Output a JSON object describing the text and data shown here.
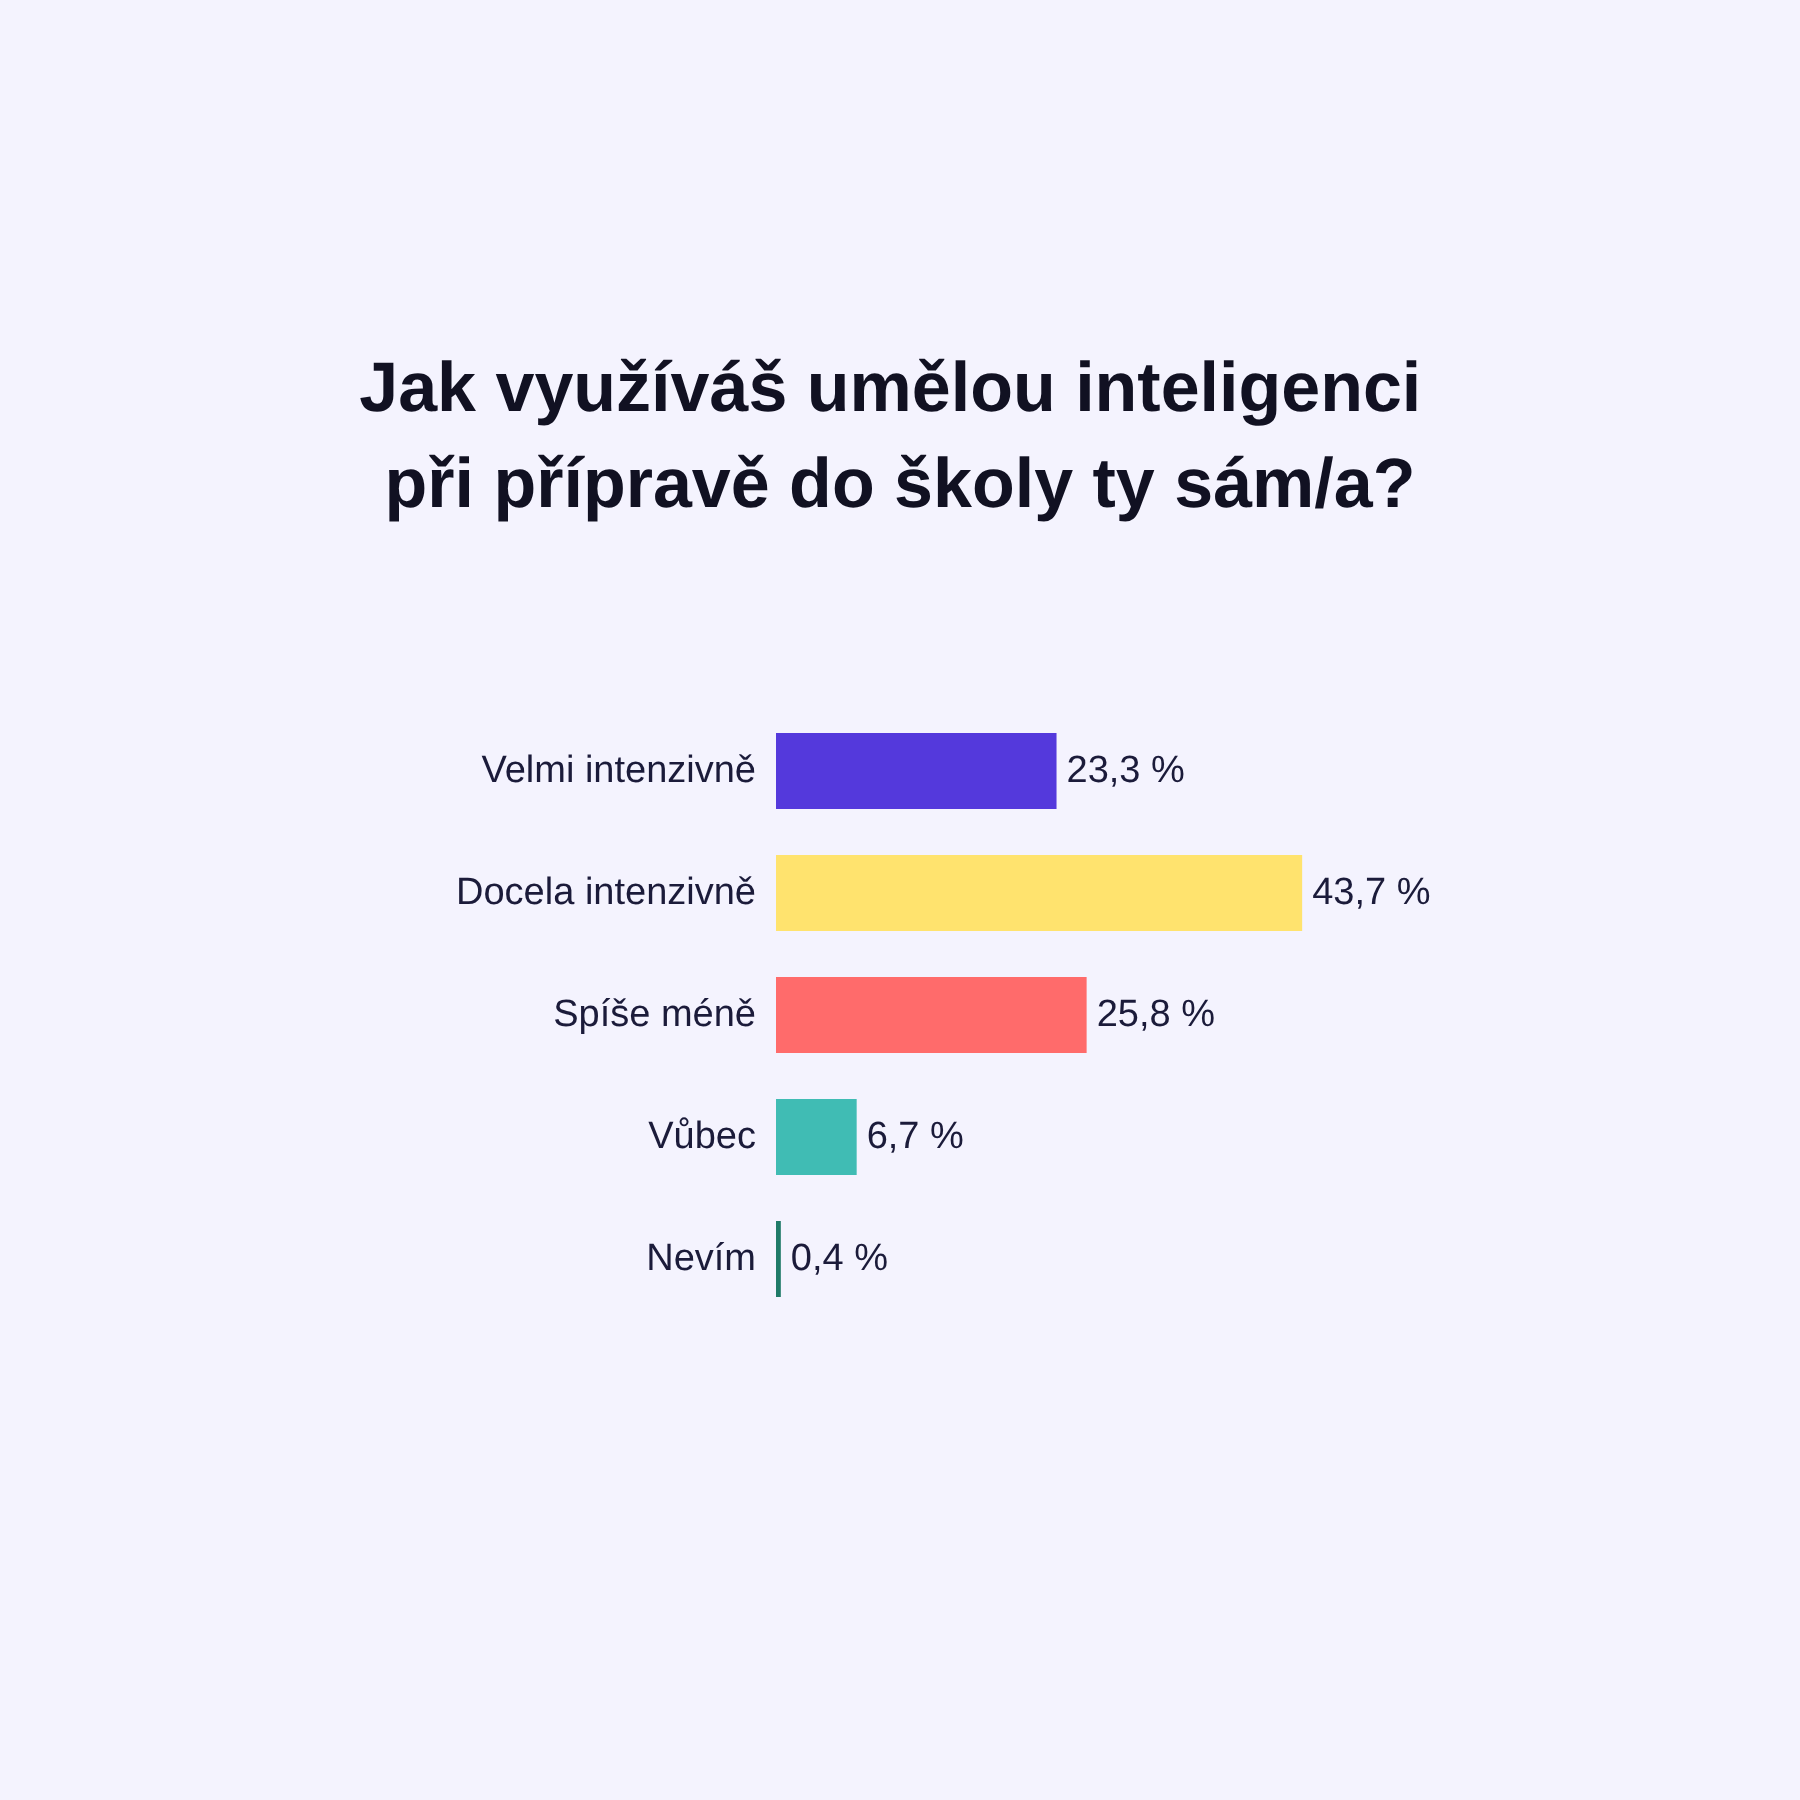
{
  "chart_data": {
    "type": "bar",
    "orientation": "horizontal",
    "title": "Jak využíváš umělou inteligenci při přípravě do školy ty sám/a?",
    "categories": [
      "Velmi intenzivně",
      "Docela intenzivně",
      "Spíše méně",
      "Vůbec",
      "Nevím"
    ],
    "values": [
      23.3,
      43.7,
      25.8,
      6.7,
      0.4
    ],
    "colors": [
      "#5439dc",
      "#ffe36e",
      "#ff6b6b",
      "#40bcb4",
      "#1f7a68"
    ],
    "value_labels": [
      "23,3 %",
      "43,7 %",
      "25,8 %",
      "6,7 %",
      "0,4 %"
    ]
  }
}
